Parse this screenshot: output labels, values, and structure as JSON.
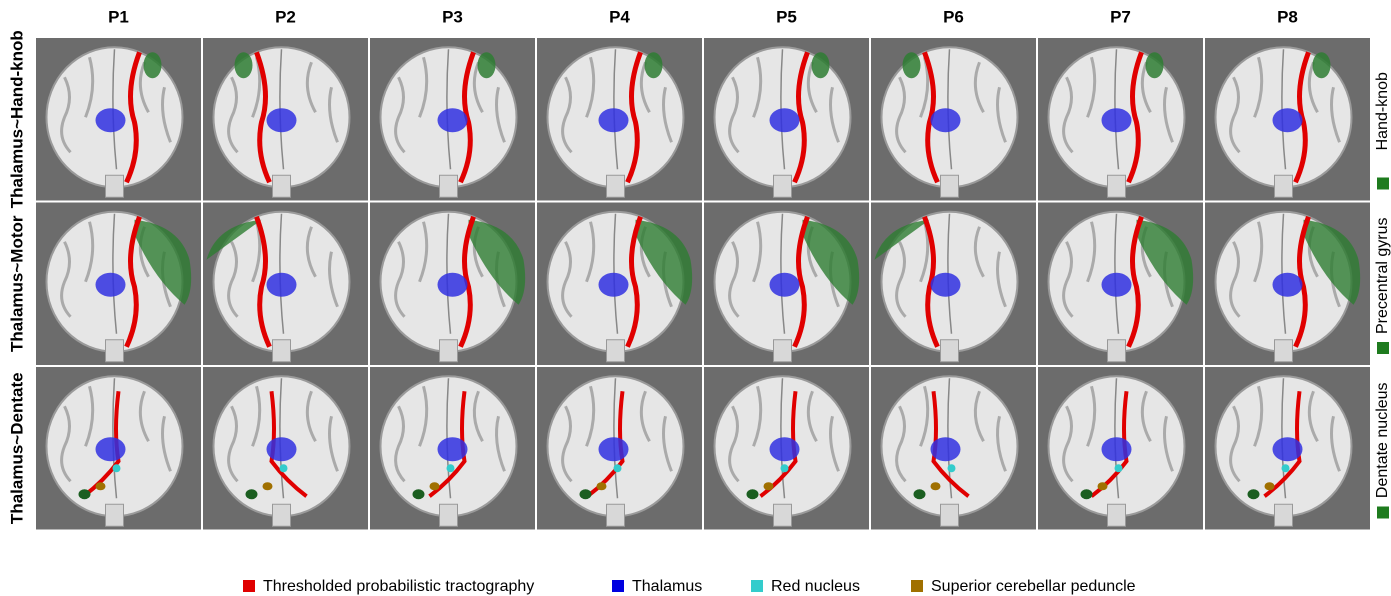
{
  "columns": [
    "P1",
    "P2",
    "P3",
    "P4",
    "P5",
    "P6",
    "P7",
    "P8"
  ],
  "rows": [
    {
      "label": "Thalamus~Hand-knob",
      "target": "Hand-knob"
    },
    {
      "label": "Thalamus~Motor",
      "target": "Precentral gyrus"
    },
    {
      "label": "Thalamus~Dentate",
      "target": "Dentate nucleus"
    }
  ],
  "legend": [
    {
      "name": "Thresholded probabilistic tractography",
      "color": "#e00000"
    },
    {
      "name": "Thalamus",
      "color": "#0000e0"
    },
    {
      "name": "Red nucleus",
      "color": "#33cccc"
    },
    {
      "name": "Superior cerebellar peduncle",
      "color": "#a07000"
    }
  ]
}
